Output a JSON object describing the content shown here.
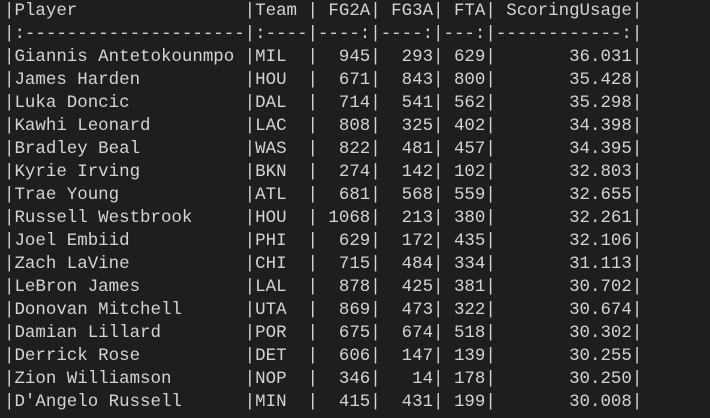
{
  "table": {
    "lines": [
      "|Player                |Team | FG2A| FG3A| FTA| ScoringUsage|",
      "|:---------------------|:----|----:|----:|---:|------------:|",
      "|Giannis Antetokounmpo |MIL  |  945|  293| 629|       36.031|",
      "|James Harden          |HOU  |  671|  843| 800|       35.428|",
      "|Luka Doncic           |DAL  |  714|  541| 562|       35.298|",
      "|Kawhi Leonard         |LAC  |  808|  325| 402|       34.398|",
      "|Bradley Beal          |WAS  |  822|  481| 457|       34.395|",
      "|Kyrie Irving          |BKN  |  274|  142| 102|       32.803|",
      "|Trae Young            |ATL  |  681|  568| 559|       32.655|",
      "|Russell Westbrook     |HOU  | 1068|  213| 380|       32.261|",
      "|Joel Embiid           |PHI  |  629|  172| 435|       32.106|",
      "|Zach LaVine           |CHI  |  715|  484| 334|       31.113|",
      "|LeBron James          |LAL  |  878|  425| 381|       30.702|",
      "|Donovan Mitchell      |UTA  |  869|  473| 322|       30.674|",
      "|Damian Lillard        |POR  |  675|  674| 518|       30.302|",
      "|Derrick Rose          |DET  |  606|  147| 139|       30.255|",
      "|Zion Williamson       |NOP  |  346|   14| 178|       30.250|",
      "|D'Angelo Russell      |MIN  |  415|  431| 199|       30.008|"
    ]
  }
}
